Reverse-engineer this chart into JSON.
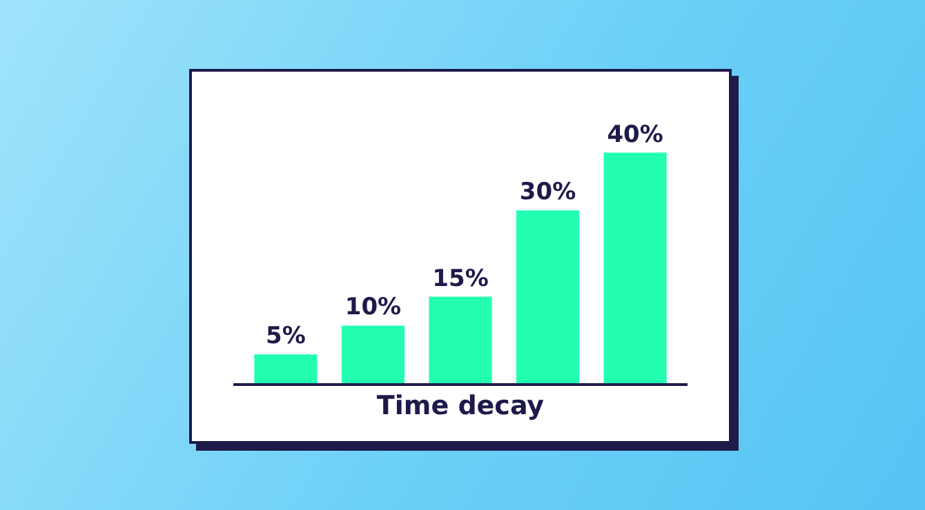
{
  "chart_data": {
    "type": "bar",
    "xlabel": "Time decay",
    "categories": [
      null,
      null,
      null,
      null,
      null
    ],
    "values": [
      5,
      10,
      15,
      30,
      40
    ],
    "color": "#22ffb0",
    "value_labels": [
      "5%",
      "10%",
      "15%",
      "30%",
      "40%"
    ]
  }
}
